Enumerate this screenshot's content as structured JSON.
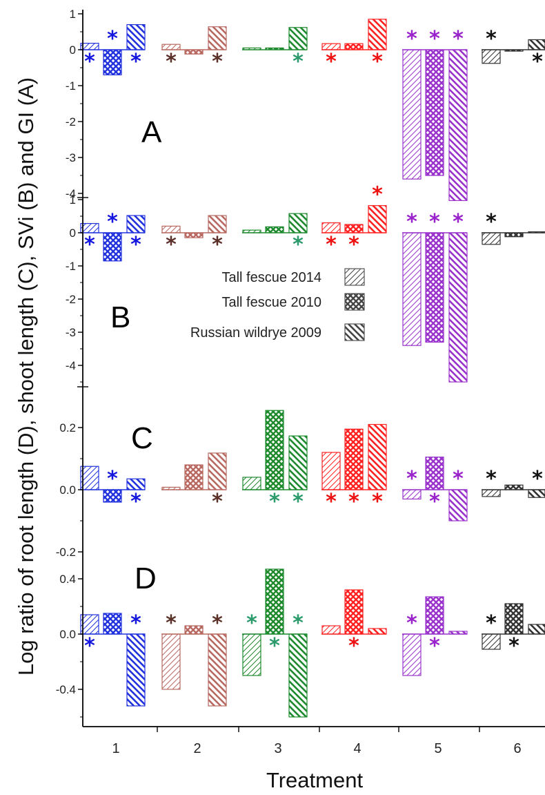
{
  "chart_data": {
    "type": "bar",
    "xlabel": "Treatment",
    "ylabel": "Log ratio of root length (D), shoot length (C), SVi (B) and GI (A)",
    "categories": [
      "1",
      "2",
      "3",
      "4",
      "5",
      "6"
    ],
    "legend": {
      "placement": "center",
      "entries": [
        "Tall fescue 2014",
        "Tall fescue 2010",
        "Russian wildrye 2009"
      ]
    },
    "colors": {
      "1": "#2233dd",
      "2": "#b86a62",
      "3": "#1e8a2e",
      "4": "#ff2222",
      "5": "#9933cc",
      "6": "#333333"
    },
    "star_colors": {
      "1": "#1515e0",
      "2": "#5a3028",
      "3": "#2a9a6a",
      "4": "#ee1111",
      "5": "#9922cc",
      "6": "#111111"
    },
    "grid": false,
    "panels": [
      {
        "label": "A",
        "ylim": [
          -4.3,
          1.1
        ],
        "yticks": [
          "1",
          "0",
          "-1",
          "-2",
          "-3",
          "-4"
        ],
        "series": [
          {
            "name": "Tall fescue 2014",
            "values": [
              0.18,
              0.15,
              0.05,
              0.17,
              -3.6,
              -0.38
            ]
          },
          {
            "name": "Tall fescue 2010",
            "values": [
              -0.7,
              -0.12,
              0.05,
              0.17,
              -3.5,
              -0.04
            ]
          },
          {
            "name": "Russian wildrye 2009",
            "values": [
              0.7,
              0.64,
              0.62,
              0.85,
              -4.2,
              0.28
            ]
          }
        ],
        "stars": [
          {
            "cat": 1,
            "bar": 0,
            "pos": "below"
          },
          {
            "cat": 1,
            "bar": 1,
            "pos": "above"
          },
          {
            "cat": 1,
            "bar": 2,
            "pos": "below"
          },
          {
            "cat": 2,
            "bar": 0,
            "pos": "below"
          },
          {
            "cat": 2,
            "bar": 2,
            "pos": "below"
          },
          {
            "cat": 3,
            "bar": 2,
            "pos": "below"
          },
          {
            "cat": 4,
            "bar": 0,
            "pos": "below"
          },
          {
            "cat": 4,
            "bar": 2,
            "pos": "below"
          },
          {
            "cat": 5,
            "bar": 0,
            "pos": "above"
          },
          {
            "cat": 5,
            "bar": 1,
            "pos": "above"
          },
          {
            "cat": 5,
            "bar": 2,
            "pos": "above"
          },
          {
            "cat": 6,
            "bar": 0,
            "pos": "above"
          },
          {
            "cat": 6,
            "bar": 2,
            "pos": "below"
          }
        ]
      },
      {
        "label": "B",
        "ylim": [
          -4.6,
          1.1
        ],
        "yticks": [
          "1",
          "0",
          "-1",
          "-2",
          "-3",
          "-4"
        ],
        "series": [
          {
            "name": "Tall fescue 2014",
            "values": [
              0.28,
              0.2,
              0.08,
              0.3,
              -3.4,
              -0.35
            ]
          },
          {
            "name": "Tall fescue 2010",
            "values": [
              -0.85,
              -0.15,
              0.18,
              0.25,
              -3.3,
              -0.12
            ]
          },
          {
            "name": "Russian wildrye 2009",
            "values": [
              0.52,
              0.52,
              0.58,
              0.82,
              -4.5,
              0.03
            ]
          }
        ],
        "stars": [
          {
            "cat": 1,
            "bar": 0,
            "pos": "below"
          },
          {
            "cat": 1,
            "bar": 1,
            "pos": "above"
          },
          {
            "cat": 1,
            "bar": 2,
            "pos": "below"
          },
          {
            "cat": 2,
            "bar": 0,
            "pos": "below"
          },
          {
            "cat": 2,
            "bar": 2,
            "pos": "below"
          },
          {
            "cat": 3,
            "bar": 2,
            "pos": "below"
          },
          {
            "cat": 4,
            "bar": 0,
            "pos": "below"
          },
          {
            "cat": 4,
            "bar": 1,
            "pos": "below"
          },
          {
            "cat": 4,
            "bar": 2,
            "pos": "above"
          },
          {
            "cat": 5,
            "bar": 0,
            "pos": "above"
          },
          {
            "cat": 5,
            "bar": 1,
            "pos": "above"
          },
          {
            "cat": 5,
            "bar": 2,
            "pos": "above"
          },
          {
            "cat": 6,
            "bar": 0,
            "pos": "above"
          }
        ]
      },
      {
        "label": "C",
        "ylim": [
          -0.21,
          0.28
        ],
        "yticks": [
          "0.2",
          "0.0",
          "-0.2"
        ],
        "series": [
          {
            "name": "Tall fescue 2014",
            "values": [
              0.075,
              0.008,
              0.04,
              0.12,
              -0.03,
              -0.022
            ]
          },
          {
            "name": "Tall fescue 2010",
            "values": [
              -0.04,
              0.08,
              0.255,
              0.195,
              0.105,
              0.015
            ]
          },
          {
            "name": "Russian wildrye 2009",
            "values": [
              0.035,
              0.118,
              0.173,
              0.21,
              -0.1,
              -0.025
            ]
          }
        ],
        "stars": [
          {
            "cat": 1,
            "bar": 1,
            "pos": "above"
          },
          {
            "cat": 1,
            "bar": 2,
            "pos": "below"
          },
          {
            "cat": 2,
            "bar": 2,
            "pos": "below"
          },
          {
            "cat": 3,
            "bar": 1,
            "pos": "below"
          },
          {
            "cat": 3,
            "bar": 2,
            "pos": "below"
          },
          {
            "cat": 4,
            "bar": 0,
            "pos": "below"
          },
          {
            "cat": 4,
            "bar": 1,
            "pos": "below"
          },
          {
            "cat": 4,
            "bar": 2,
            "pos": "below"
          },
          {
            "cat": 5,
            "bar": 0,
            "pos": "above"
          },
          {
            "cat": 5,
            "bar": 1,
            "pos": "below"
          },
          {
            "cat": 5,
            "bar": 2,
            "pos": "above"
          },
          {
            "cat": 6,
            "bar": 0,
            "pos": "above"
          },
          {
            "cat": 6,
            "bar": 2,
            "pos": "above"
          }
        ]
      },
      {
        "label": "D",
        "ylim": [
          -0.73,
          0.5
        ],
        "yticks": [
          "0.4",
          "0.0",
          "-0.4"
        ],
        "series": [
          {
            "name": "Tall fescue 2014",
            "values": [
              0.14,
              -0.4,
              -0.3,
              0.06,
              -0.3,
              -0.11
            ]
          },
          {
            "name": "Tall fescue 2010",
            "values": [
              0.15,
              0.06,
              0.47,
              0.32,
              0.27,
              0.22
            ]
          },
          {
            "name": "Russian wildrye 2009",
            "values": [
              -0.52,
              -0.52,
              -0.6,
              0.04,
              0.02,
              0.07
            ]
          }
        ],
        "stars": [
          {
            "cat": 1,
            "bar": 0,
            "pos": "below"
          },
          {
            "cat": 1,
            "bar": 2,
            "pos": "above"
          },
          {
            "cat": 2,
            "bar": 0,
            "pos": "above"
          },
          {
            "cat": 2,
            "bar": 2,
            "pos": "above"
          },
          {
            "cat": 3,
            "bar": 0,
            "pos": "above"
          },
          {
            "cat": 3,
            "bar": 1,
            "pos": "below"
          },
          {
            "cat": 3,
            "bar": 2,
            "pos": "above"
          },
          {
            "cat": 4,
            "bar": 1,
            "pos": "below"
          },
          {
            "cat": 5,
            "bar": 0,
            "pos": "above"
          },
          {
            "cat": 5,
            "bar": 1,
            "pos": "below"
          },
          {
            "cat": 6,
            "bar": 0,
            "pos": "above"
          },
          {
            "cat": 6,
            "bar": 1,
            "pos": "below"
          }
        ]
      }
    ]
  }
}
